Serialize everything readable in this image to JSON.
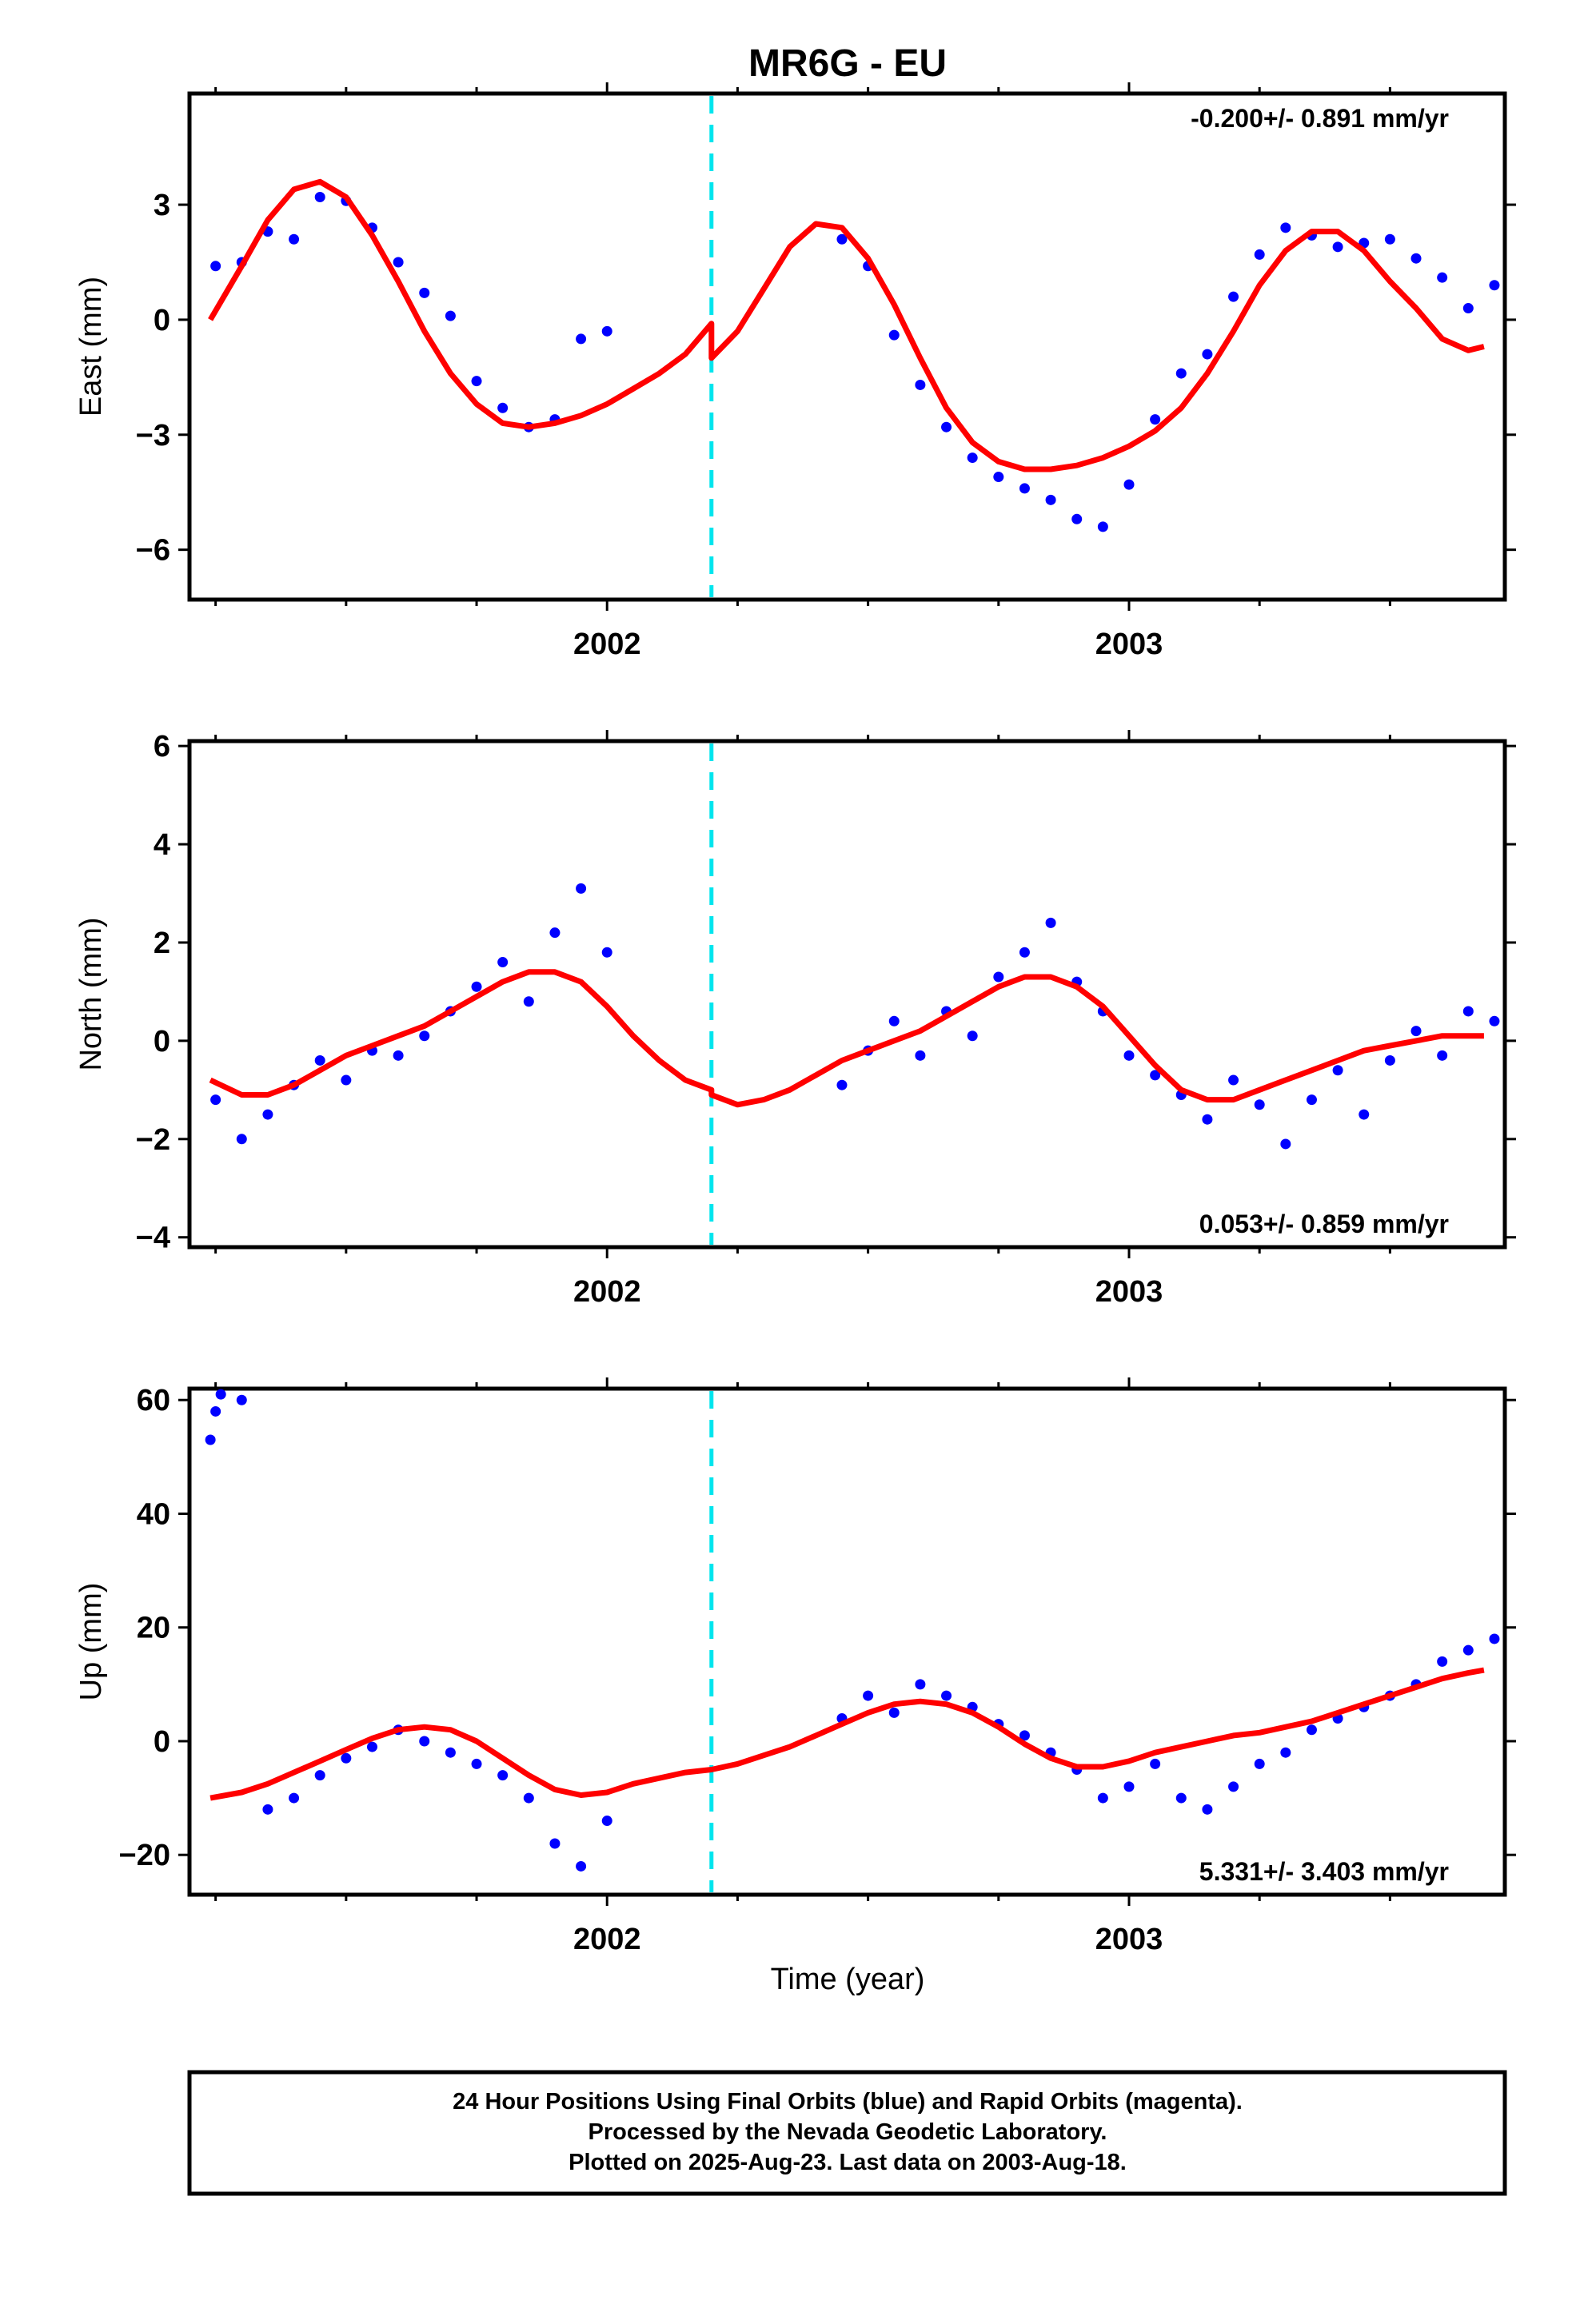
{
  "title": "MR6G - EU",
  "colors": {
    "final_orbits": "#0000ff",
    "model_fit": "#ff0000",
    "antenna_change": "#00e5ee",
    "frame": "#000000"
  },
  "xaxis": {
    "label": "Time (year)",
    "range": [
      2001.2,
      2003.72
    ],
    "major_ticks": [
      2002,
      2003
    ],
    "tick_labels": [
      "2002",
      "2003"
    ],
    "minor_ticks": [
      2001.25,
      2001.5,
      2001.75,
      2002.25,
      2002.5,
      2002.75,
      2003.25,
      2003.5
    ]
  },
  "footer": {
    "line1": "24 Hour Positions Using Final Orbits (blue) and Rapid Orbits (magenta).",
    "line2": "Processed by the Nevada Geodetic Laboratory.",
    "line3": "Plotted on 2025-Aug-23. Last data on 2003-Aug-18."
  },
  "chart_data": [
    {
      "type": "scatter",
      "component": "east",
      "ylabel": "East (mm)",
      "ylim": [
        -7.3,
        5.9
      ],
      "yticks": [
        -6,
        -3,
        0,
        3
      ],
      "ytick_labels": [
        "−6",
        "−3",
        "0",
        "3"
      ],
      "rate": "-0.200+/- 0.891 mm/yr",
      "rate_position": "top-right",
      "antenna_change_x": 2002.2,
      "series": [
        {
          "kind": "points",
          "x": [
            2001.25,
            2001.3,
            2001.35,
            2001.4,
            2001.45,
            2001.5,
            2001.55,
            2001.6,
            2001.65,
            2001.7,
            2001.75,
            2001.8,
            2001.85,
            2001.9,
            2001.95,
            2002.0,
            2002.45,
            2002.5,
            2002.55,
            2002.6,
            2002.65,
            2002.7,
            2002.75,
            2002.8,
            2002.85,
            2002.9,
            2002.95,
            2003.0,
            2003.05,
            2003.1,
            2003.15,
            2003.2,
            2003.25,
            2003.3,
            2003.35,
            2003.4,
            2003.45,
            2003.5,
            2003.55,
            2003.6,
            2003.65,
            2003.7
          ],
          "y": [
            1.4,
            1.5,
            2.3,
            2.1,
            3.2,
            3.1,
            2.4,
            1.5,
            0.7,
            0.1,
            -1.6,
            -2.3,
            -2.8,
            -2.6,
            -0.5,
            -0.3,
            2.1,
            1.4,
            -0.4,
            -1.7,
            -2.8,
            -3.6,
            -4.1,
            -4.4,
            -4.7,
            -5.2,
            -5.4,
            -4.3,
            -2.6,
            -1.4,
            -0.9,
            0.6,
            1.7,
            2.4,
            2.2,
            1.9,
            2.0,
            2.1,
            1.6,
            1.1,
            0.3,
            0.9
          ]
        },
        {
          "kind": "line",
          "x": [
            2001.24,
            2001.3,
            2001.35,
            2001.4,
            2001.45,
            2001.5,
            2001.55,
            2001.6,
            2001.65,
            2001.7,
            2001.75,
            2001.8,
            2001.85,
            2001.9,
            2001.95,
            2002.0,
            2002.05,
            2002.1,
            2002.15,
            2002.2,
            2002.2,
            2002.25,
            2002.3,
            2002.35,
            2002.4,
            2002.45,
            2002.5,
            2002.55,
            2002.6,
            2002.65,
            2002.7,
            2002.75,
            2002.8,
            2002.85,
            2002.9,
            2002.95,
            2003.0,
            2003.05,
            2003.1,
            2003.15,
            2003.2,
            2003.25,
            2003.3,
            2003.35,
            2003.4,
            2003.45,
            2003.5,
            2003.55,
            2003.6,
            2003.65,
            2003.68
          ],
          "y": [
            0.0,
            1.4,
            2.6,
            3.4,
            3.6,
            3.2,
            2.2,
            1.0,
            -0.3,
            -1.4,
            -2.2,
            -2.7,
            -2.8,
            -2.7,
            -2.5,
            -2.2,
            -1.8,
            -1.4,
            -0.9,
            -0.1,
            -1.0,
            -0.3,
            0.8,
            1.9,
            2.5,
            2.4,
            1.6,
            0.4,
            -1.0,
            -2.3,
            -3.2,
            -3.7,
            -3.9,
            -3.9,
            -3.8,
            -3.6,
            -3.3,
            -2.9,
            -2.3,
            -1.4,
            -0.3,
            0.9,
            1.8,
            2.3,
            2.3,
            1.8,
            1.0,
            0.3,
            -0.5,
            -0.8,
            -0.7
          ]
        }
      ]
    },
    {
      "type": "scatter",
      "component": "north",
      "ylabel": "North (mm)",
      "ylim": [
        -4.2,
        6.1
      ],
      "yticks": [
        -4,
        -2,
        0,
        2,
        4,
        6
      ],
      "ytick_labels": [
        "−4",
        "−2",
        "0",
        "2",
        "4",
        "6"
      ],
      "rate": "0.053+/- 0.859 mm/yr",
      "rate_position": "bottom-right",
      "antenna_change_x": 2002.2,
      "series": [
        {
          "kind": "points",
          "x": [
            2001.25,
            2001.3,
            2001.35,
            2001.4,
            2001.45,
            2001.5,
            2001.55,
            2001.6,
            2001.65,
            2001.7,
            2001.75,
            2001.8,
            2001.85,
            2001.9,
            2001.95,
            2002.0,
            2002.45,
            2002.5,
            2002.55,
            2002.6,
            2002.65,
            2002.7,
            2002.75,
            2002.8,
            2002.85,
            2002.9,
            2002.95,
            2003.0,
            2003.05,
            2003.1,
            2003.15,
            2003.2,
            2003.25,
            2003.3,
            2003.35,
            2003.4,
            2003.45,
            2003.5,
            2003.55,
            2003.6,
            2003.65,
            2003.7
          ],
          "y": [
            -1.2,
            -2.0,
            -1.5,
            -0.9,
            -0.4,
            -0.8,
            -0.2,
            -0.3,
            0.1,
            0.6,
            1.1,
            1.6,
            0.8,
            2.2,
            3.1,
            1.8,
            -0.9,
            -0.2,
            0.4,
            -0.3,
            0.6,
            0.1,
            1.3,
            1.8,
            2.4,
            1.2,
            0.6,
            -0.3,
            -0.7,
            -1.1,
            -1.6,
            -0.8,
            -1.3,
            -2.1,
            -1.2,
            -0.6,
            -1.5,
            -0.4,
            0.2,
            -0.3,
            0.6,
            0.4
          ]
        },
        {
          "kind": "line",
          "x": [
            2001.24,
            2001.3,
            2001.35,
            2001.4,
            2001.45,
            2001.5,
            2001.55,
            2001.6,
            2001.65,
            2001.7,
            2001.75,
            2001.8,
            2001.85,
            2001.9,
            2001.95,
            2002.0,
            2002.05,
            2002.1,
            2002.15,
            2002.2,
            2002.2,
            2002.25,
            2002.3,
            2002.35,
            2002.4,
            2002.45,
            2002.5,
            2002.55,
            2002.6,
            2002.65,
            2002.7,
            2002.75,
            2002.8,
            2002.85,
            2002.9,
            2002.95,
            2003.0,
            2003.05,
            2003.1,
            2003.15,
            2003.2,
            2003.25,
            2003.3,
            2003.35,
            2003.4,
            2003.45,
            2003.5,
            2003.55,
            2003.6,
            2003.65,
            2003.68
          ],
          "y": [
            -0.8,
            -1.1,
            -1.1,
            -0.9,
            -0.6,
            -0.3,
            -0.1,
            0.1,
            0.3,
            0.6,
            0.9,
            1.2,
            1.4,
            1.4,
            1.2,
            0.7,
            0.1,
            -0.4,
            -0.8,
            -1.0,
            -1.1,
            -1.3,
            -1.2,
            -1.0,
            -0.7,
            -0.4,
            -0.2,
            0.0,
            0.2,
            0.5,
            0.8,
            1.1,
            1.3,
            1.3,
            1.1,
            0.7,
            0.1,
            -0.5,
            -1.0,
            -1.2,
            -1.2,
            -1.0,
            -0.8,
            -0.6,
            -0.4,
            -0.2,
            -0.1,
            0.0,
            0.1,
            0.1,
            0.1
          ]
        }
      ]
    },
    {
      "type": "scatter",
      "component": "up",
      "ylabel": "Up (mm)",
      "ylim": [
        -27,
        62
      ],
      "yticks": [
        -20,
        0,
        20,
        40,
        60
      ],
      "ytick_labels": [
        "−20",
        "0",
        "20",
        "40",
        "60"
      ],
      "rate": "5.331+/- 3.403 mm/yr",
      "rate_position": "bottom-right",
      "antenna_change_x": 2002.2,
      "series": [
        {
          "kind": "points",
          "x": [
            2001.24,
            2001.25,
            2001.26,
            2001.3,
            2001.35,
            2001.4,
            2001.45,
            2001.5,
            2001.55,
            2001.6,
            2001.65,
            2001.7,
            2001.75,
            2001.8,
            2001.85,
            2001.9,
            2001.95,
            2002.0,
            2002.45,
            2002.5,
            2002.55,
            2002.6,
            2002.65,
            2002.7,
            2002.75,
            2002.8,
            2002.85,
            2002.9,
            2002.95,
            2003.0,
            2003.05,
            2003.1,
            2003.15,
            2003.2,
            2003.25,
            2003.3,
            2003.35,
            2003.4,
            2003.45,
            2003.5,
            2003.55,
            2003.6,
            2003.65,
            2003.7
          ],
          "y": [
            53,
            58,
            61,
            60,
            -12,
            -10,
            -6,
            -3,
            -1,
            2,
            0,
            -2,
            -4,
            -6,
            -10,
            -18,
            -22,
            -14,
            4,
            8,
            5,
            10,
            8,
            6,
            3,
            1,
            -2,
            -5,
            -10,
            -8,
            -4,
            -10,
            -12,
            -8,
            -4,
            -2,
            2,
            4,
            6,
            8,
            10,
            14,
            16,
            18
          ]
        },
        {
          "kind": "line",
          "x": [
            2001.24,
            2001.3,
            2001.35,
            2001.4,
            2001.45,
            2001.5,
            2001.55,
            2001.6,
            2001.65,
            2001.7,
            2001.75,
            2001.8,
            2001.85,
            2001.9,
            2001.95,
            2002.0,
            2002.05,
            2002.1,
            2002.15,
            2002.2,
            2002.2,
            2002.25,
            2002.3,
            2002.35,
            2002.4,
            2002.45,
            2002.5,
            2002.55,
            2002.6,
            2002.65,
            2002.7,
            2002.75,
            2002.8,
            2002.85,
            2002.9,
            2002.95,
            2003.0,
            2003.05,
            2003.1,
            2003.15,
            2003.2,
            2003.25,
            2003.3,
            2003.35,
            2003.4,
            2003.45,
            2003.5,
            2003.55,
            2003.6,
            2003.65,
            2003.68
          ],
          "y": [
            -10,
            -9,
            -7.5,
            -5.5,
            -3.5,
            -1.5,
            0.5,
            2,
            2.5,
            2,
            0,
            -3,
            -6,
            -8.5,
            -9.5,
            -9,
            -7.5,
            -6.5,
            -5.5,
            -5,
            -5,
            -4,
            -2.5,
            -1,
            1,
            3,
            5,
            6.5,
            7,
            6.5,
            5,
            2.5,
            -0.5,
            -3,
            -4.5,
            -4.5,
            -3.5,
            -2,
            -1,
            0,
            1,
            1.5,
            2.5,
            3.5,
            5,
            6.5,
            8,
            9.5,
            11,
            12,
            12.5
          ]
        }
      ]
    }
  ]
}
